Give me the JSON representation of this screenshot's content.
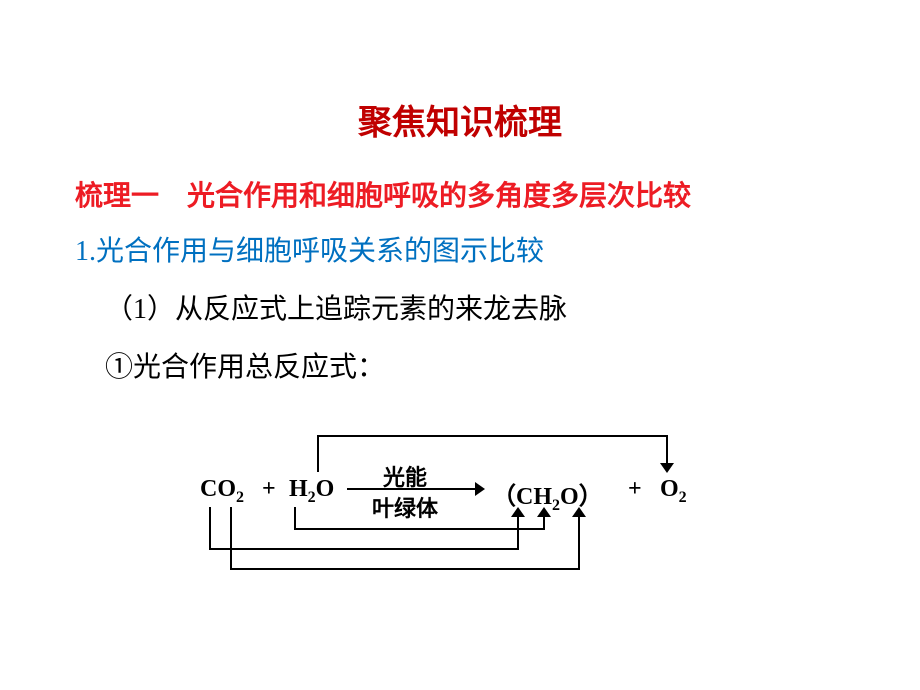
{
  "title": "聚焦知识梳理",
  "section": "梳理一　光合作用和细胞呼吸的多角度多层次比较",
  "subtitle": "1.光合作用与细胞呼吸关系的图示比较",
  "item1": "（1）从反应式上追踪元素的来龙去脉",
  "item2": "①光合作用总反应式：",
  "equation": {
    "co2": "CO",
    "co2_sub": "2",
    "plus": "+",
    "h2o_h": "H",
    "h2o_sub": "2",
    "h2o_o": "O",
    "light": "光能",
    "chloroplast": "叶绿体",
    "ch2o_open": "（",
    "ch2o_c": "C",
    "ch2o_h": "H",
    "ch2o_sub": "2",
    "ch2o_o": "O",
    "ch2o_close": "）",
    "o2_o": "O",
    "o2_sub": "2"
  },
  "colors": {
    "title": "#c00000",
    "section": "#ed1c24",
    "subtitle": "#0070c0",
    "body": "#000000",
    "bg": "#ffffff"
  }
}
